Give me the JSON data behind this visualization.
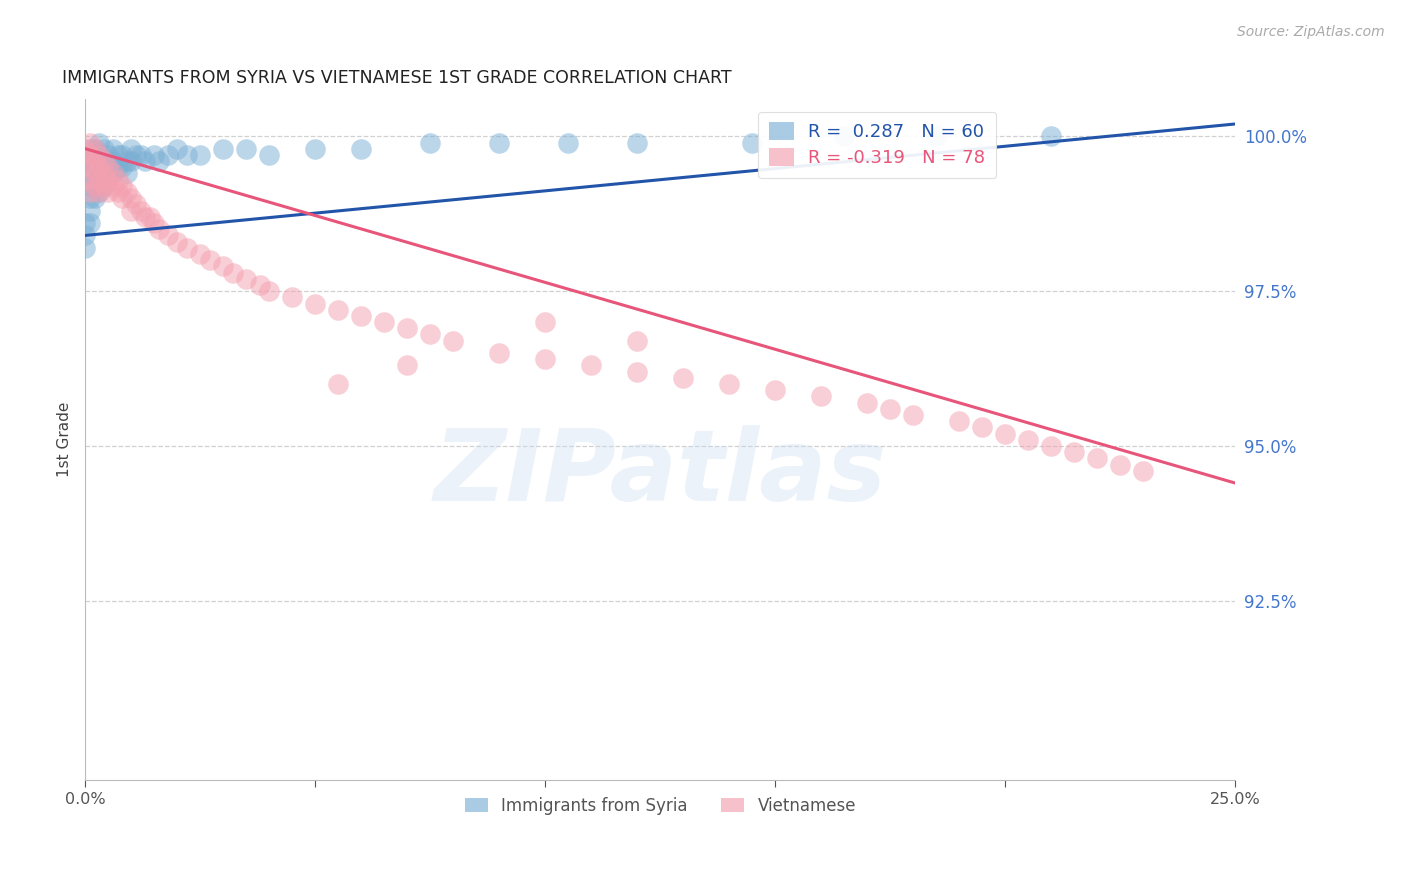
{
  "title": "IMMIGRANTS FROM SYRIA VS VIETNAMESE 1ST GRADE CORRELATION CHART",
  "source": "Source: ZipAtlas.com",
  "ylabel": "1st Grade",
  "legend_blue_r": " 0.287",
  "legend_blue_n": "60",
  "legend_pink_r": "-0.319",
  "legend_pink_n": "78",
  "blue_color": "#7BAFD4",
  "pink_color": "#F4A0B0",
  "blue_line_color": "#2255AA",
  "pink_line_color": "#E8557A",
  "watermark_text": "ZIPatlas",
  "watermark_color": "#C8DCF0",
  "xlim": [
    0.0,
    0.25
  ],
  "ylim": [
    0.896,
    1.006
  ],
  "yticks": [
    0.925,
    0.95,
    0.975,
    1.0
  ],
  "ytick_labels": [
    "92.5%",
    "95.0%",
    "97.5%",
    "100.0%"
  ],
  "xticks": [
    0.0,
    0.05,
    0.1,
    0.15,
    0.2,
    0.25
  ],
  "xtick_labels": [
    "0.0%",
    "",
    "",
    "",
    "",
    "25.0%"
  ],
  "blue_x": [
    0.0,
    0.0,
    0.0,
    0.001,
    0.001,
    0.001,
    0.001,
    0.001,
    0.001,
    0.001,
    0.002,
    0.002,
    0.002,
    0.002,
    0.002,
    0.003,
    0.003,
    0.003,
    0.003,
    0.003,
    0.004,
    0.004,
    0.004,
    0.004,
    0.005,
    0.005,
    0.005,
    0.006,
    0.006,
    0.006,
    0.007,
    0.007,
    0.008,
    0.008,
    0.009,
    0.009,
    0.01,
    0.01,
    0.011,
    0.012,
    0.013,
    0.015,
    0.016,
    0.018,
    0.02,
    0.022,
    0.025,
    0.03,
    0.035,
    0.04,
    0.05,
    0.06,
    0.075,
    0.09,
    0.105,
    0.12,
    0.145,
    0.165,
    0.185,
    0.21
  ],
  "blue_y": [
    0.986,
    0.984,
    0.982,
    0.998,
    0.996,
    0.994,
    0.992,
    0.99,
    0.988,
    0.986,
    0.998,
    0.996,
    0.994,
    0.992,
    0.99,
    0.999,
    0.997,
    0.995,
    0.993,
    0.991,
    0.998,
    0.996,
    0.994,
    0.992,
    0.997,
    0.995,
    0.993,
    0.998,
    0.996,
    0.994,
    0.997,
    0.995,
    0.997,
    0.995,
    0.996,
    0.994,
    0.998,
    0.996,
    0.997,
    0.997,
    0.996,
    0.997,
    0.996,
    0.997,
    0.998,
    0.997,
    0.997,
    0.998,
    0.998,
    0.997,
    0.998,
    0.998,
    0.999,
    0.999,
    0.999,
    0.999,
    0.999,
    1.0,
    1.0,
    1.0
  ],
  "pink_x": [
    0.0,
    0.0,
    0.001,
    0.001,
    0.001,
    0.001,
    0.001,
    0.002,
    0.002,
    0.002,
    0.002,
    0.003,
    0.003,
    0.003,
    0.003,
    0.004,
    0.004,
    0.004,
    0.005,
    0.005,
    0.005,
    0.006,
    0.006,
    0.007,
    0.007,
    0.008,
    0.008,
    0.009,
    0.01,
    0.01,
    0.011,
    0.012,
    0.013,
    0.014,
    0.015,
    0.016,
    0.018,
    0.02,
    0.022,
    0.025,
    0.027,
    0.03,
    0.032,
    0.035,
    0.038,
    0.04,
    0.045,
    0.05,
    0.055,
    0.06,
    0.065,
    0.07,
    0.075,
    0.08,
    0.09,
    0.1,
    0.11,
    0.12,
    0.13,
    0.14,
    0.15,
    0.16,
    0.17,
    0.175,
    0.18,
    0.19,
    0.195,
    0.2,
    0.205,
    0.21,
    0.215,
    0.22,
    0.225,
    0.23,
    0.1,
    0.12,
    0.07,
    0.055
  ],
  "pink_y": [
    0.998,
    0.996,
    0.999,
    0.997,
    0.995,
    0.993,
    0.991,
    0.998,
    0.996,
    0.994,
    0.992,
    0.997,
    0.995,
    0.993,
    0.991,
    0.996,
    0.994,
    0.992,
    0.995,
    0.993,
    0.991,
    0.994,
    0.992,
    0.993,
    0.991,
    0.992,
    0.99,
    0.991,
    0.99,
    0.988,
    0.989,
    0.988,
    0.987,
    0.987,
    0.986,
    0.985,
    0.984,
    0.983,
    0.982,
    0.981,
    0.98,
    0.979,
    0.978,
    0.977,
    0.976,
    0.975,
    0.974,
    0.973,
    0.972,
    0.971,
    0.97,
    0.969,
    0.968,
    0.967,
    0.965,
    0.964,
    0.963,
    0.962,
    0.961,
    0.96,
    0.959,
    0.958,
    0.957,
    0.956,
    0.955,
    0.954,
    0.953,
    0.952,
    0.951,
    0.95,
    0.949,
    0.948,
    0.947,
    0.946,
    0.97,
    0.967,
    0.963,
    0.96
  ],
  "blue_line_x0": 0.0,
  "blue_line_y0": 0.984,
  "blue_line_x1": 0.25,
  "blue_line_y1": 1.002,
  "pink_line_x0": 0.0,
  "pink_line_y0": 0.998,
  "pink_line_x1": 0.25,
  "pink_line_y1": 0.944
}
